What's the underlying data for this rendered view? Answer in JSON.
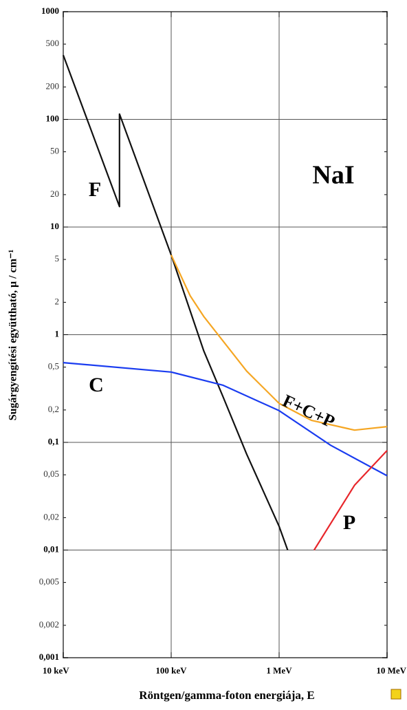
{
  "chart_data": {
    "type": "line",
    "xlabel": "Röntgen/gamma-foton energiája, E",
    "ylabel": "Sugárgyengítési együttható, μ / cm⁻¹",
    "xscale": "log",
    "yscale": "log",
    "grid": true,
    "xlim": [
      10,
      10000
    ],
    "ylim": [
      0.001,
      1000
    ],
    "xticks": [
      {
        "value": 10,
        "label": "10 keV"
      },
      {
        "value": 100,
        "label": "100 keV"
      },
      {
        "value": 1000,
        "label": "1 MeV"
      },
      {
        "value": 10000,
        "label": "10 MeV"
      }
    ],
    "yticks": [
      1000,
      500,
      200,
      100,
      50,
      20,
      10,
      5,
      2,
      1,
      {
        "value": 0.5,
        "label": "0,5"
      },
      {
        "value": 0.2,
        "label": "0,2"
      },
      {
        "value": 0.1,
        "label": "0,1"
      },
      {
        "value": 0.05,
        "label": "0,05"
      },
      {
        "value": 0.02,
        "label": "0,02"
      },
      {
        "value": 0.01,
        "label": "0,01"
      },
      {
        "value": 0.005,
        "label": "0,005"
      },
      {
        "value": 0.002,
        "label": "0,002"
      },
      {
        "value": 0.001,
        "label": "0,001"
      }
    ],
    "series": [
      {
        "name": "F",
        "color": "#111111",
        "x": [
          10,
          33.2,
          33.2,
          100,
          200,
          300,
          500,
          1000,
          1200
        ],
        "values": [
          395,
          15.5,
          112,
          5.5,
          0.71,
          0.27,
          0.078,
          0.0166,
          0.01
        ]
      },
      {
        "name": "F+C+P",
        "color": "#f5a623",
        "x": [
          100,
          150,
          200,
          500,
          1000,
          2000,
          5000,
          10000
        ],
        "values": [
          5.5,
          2.3,
          1.48,
          0.46,
          0.23,
          0.16,
          0.13,
          0.14
        ]
      },
      {
        "name": "C",
        "color": "#1a3cf0",
        "x": [
          10,
          100,
          300,
          1000,
          3000,
          10000
        ],
        "values": [
          0.55,
          0.45,
          0.34,
          0.197,
          0.094,
          0.049
        ]
      },
      {
        "name": "P",
        "color": "#e8262b",
        "x": [
          2110,
          5000,
          10000
        ],
        "values": [
          0.01,
          0.04,
          0.084
        ]
      }
    ],
    "annotations": [
      {
        "text": "NaI",
        "color": "#b21fbf"
      }
    ]
  }
}
